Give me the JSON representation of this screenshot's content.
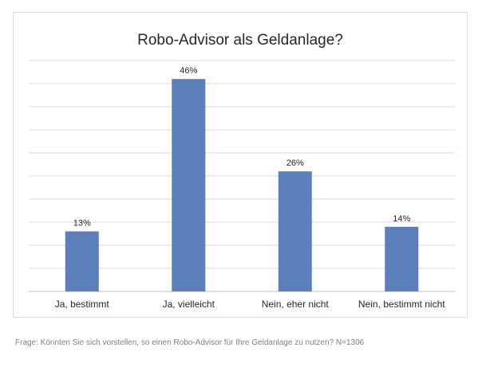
{
  "chart_data": {
    "type": "bar",
    "title": "Robo-Advisor als Geldanlage?",
    "categories": [
      "Ja, bestimmt",
      "Ja, vielleicht",
      "Nein, eher nicht",
      "Nein, bestimmt nicht"
    ],
    "values": [
      13,
      46,
      26,
      14
    ],
    "data_labels": [
      "13%",
      "46%",
      "26%",
      "14%"
    ],
    "xlabel": "",
    "ylabel": "",
    "ylim": [
      0,
      50
    ],
    "grid": true,
    "legend": "none",
    "bar_color": "#5B7FB8"
  },
  "footnote": "Frage: Könnten Sie sich vorstellen, so einen Robo-Advisor für Ihre Geldanlage zu nutzen? N=1306"
}
